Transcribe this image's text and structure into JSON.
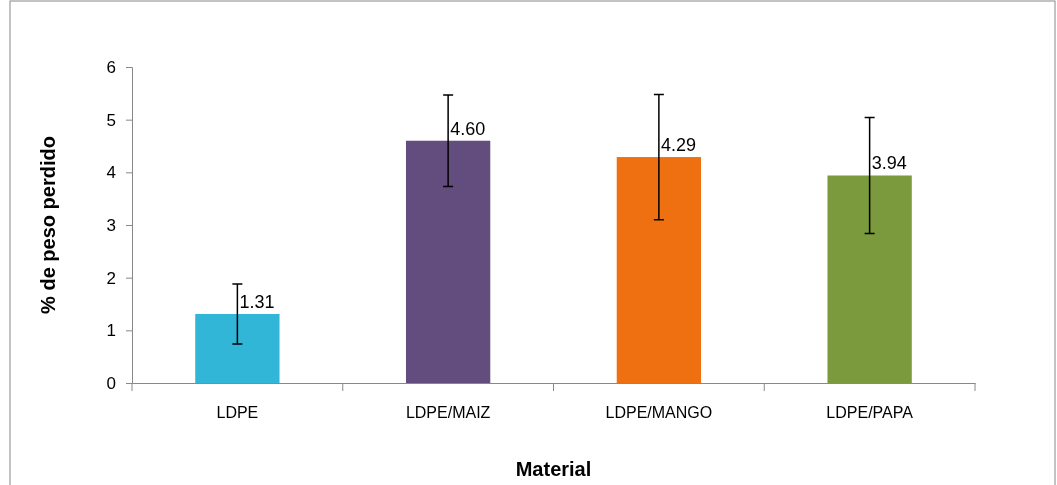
{
  "chart_data": {
    "type": "bar",
    "xlabel": "Material",
    "ylabel": "% de peso perdido",
    "categories": [
      "LDPE",
      "LDPE/MAIZ",
      "LDPE/MANGO",
      "LDPE/PAPA"
    ],
    "values": [
      1.31,
      4.6,
      4.29,
      3.94
    ],
    "colors": [
      "#31b6d8",
      "#634c7e",
      "#ee7010",
      "#7a9a3d"
    ],
    "errors": [
      0.57,
      0.87,
      1.19,
      1.1
    ],
    "value_labels": [
      "1.31",
      "4.60",
      "4.29",
      "3.94"
    ],
    "ylim": [
      0,
      6
    ],
    "yticks": [
      0,
      1,
      2,
      3,
      4,
      5,
      6
    ]
  }
}
